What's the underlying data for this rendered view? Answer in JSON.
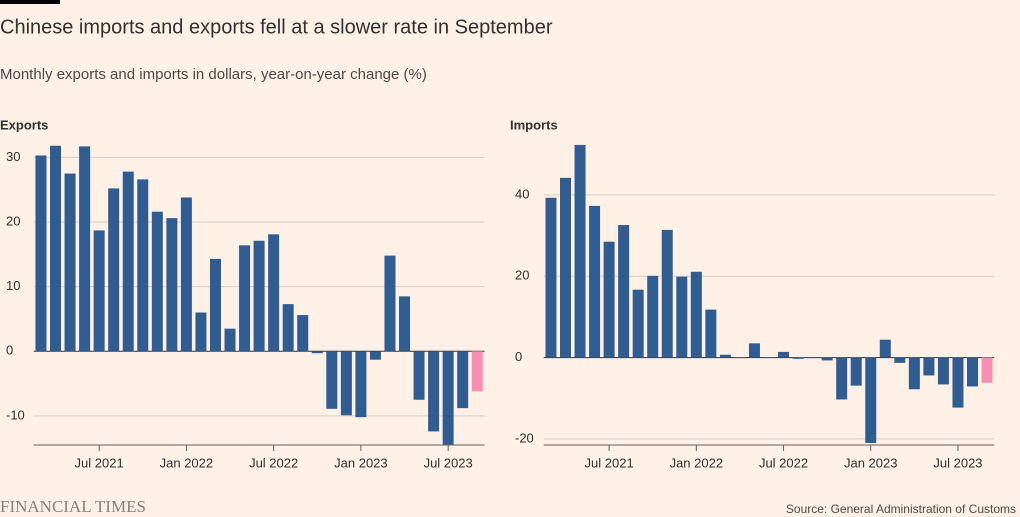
{
  "header": {
    "title": "Chinese imports and exports fell at a slower rate in September",
    "subtitle": "Monthly exports and imports in dollars, year-on-year change (%)"
  },
  "chart_data": [
    {
      "type": "bar",
      "title": "Exports",
      "categories": [
        null,
        null,
        null,
        null,
        "Jul 2021",
        null,
        null,
        null,
        null,
        null,
        "Jan 2022",
        null,
        null,
        null,
        null,
        null,
        "Jul 2022",
        null,
        null,
        null,
        null,
        null,
        "Jan 2023",
        null,
        null,
        null,
        null,
        null,
        "Jul 2023",
        null,
        null
      ],
      "values": [
        30.3,
        31.8,
        27.5,
        31.7,
        18.7,
        25.2,
        27.8,
        26.6,
        21.6,
        20.6,
        23.8,
        6.0,
        14.3,
        3.5,
        16.4,
        17.1,
        18.1,
        7.3,
        5.6,
        -0.3,
        -8.9,
        -9.9,
        -10.2,
        -1.3,
        14.8,
        8.5,
        -7.5,
        -12.4,
        -14.5,
        -8.8,
        -6.2
      ],
      "colors": [
        "#2f5d91",
        "#2f5d91",
        "#2f5d91",
        "#2f5d91",
        "#2f5d91",
        "#2f5d91",
        "#2f5d91",
        "#2f5d91",
        "#2f5d91",
        "#2f5d91",
        "#2f5d91",
        "#2f5d91",
        "#2f5d91",
        "#2f5d91",
        "#2f5d91",
        "#2f5d91",
        "#2f5d91",
        "#2f5d91",
        "#2f5d91",
        "#2f5d91",
        "#2f5d91",
        "#2f5d91",
        "#2f5d91",
        "#2f5d91",
        "#2f5d91",
        "#2f5d91",
        "#2f5d91",
        "#2f5d91",
        "#2f5d91",
        "#2f5d91",
        "#f78fb3"
      ],
      "ylim": [
        -14.5,
        33
      ],
      "yticks": [
        -10,
        0,
        10,
        20,
        30
      ],
      "grid": true
    },
    {
      "type": "bar",
      "title": "Imports",
      "categories": [
        null,
        null,
        null,
        null,
        "Jul 2021",
        null,
        null,
        null,
        null,
        null,
        "Jan 2022",
        null,
        null,
        null,
        null,
        null,
        "Jul 2022",
        null,
        null,
        null,
        null,
        null,
        "Jan 2023",
        null,
        null,
        null,
        null,
        null,
        "Jul 2023",
        null,
        null
      ],
      "values": [
        39.3,
        44.2,
        52.3,
        37.3,
        28.5,
        32.6,
        16.7,
        20.1,
        31.4,
        19.9,
        21.1,
        11.8,
        0.7,
        -0.1,
        3.5,
        0.0,
        1.4,
        -0.3,
        0.1,
        -0.7,
        -10.3,
        -6.9,
        -21.0,
        4.4,
        -1.3,
        -7.8,
        -4.4,
        -6.6,
        -12.3,
        -7.1,
        -6.2
      ],
      "colors": [
        "#2f5d91",
        "#2f5d91",
        "#2f5d91",
        "#2f5d91",
        "#2f5d91",
        "#2f5d91",
        "#2f5d91",
        "#2f5d91",
        "#2f5d91",
        "#2f5d91",
        "#2f5d91",
        "#2f5d91",
        "#2f5d91",
        "#2f5d91",
        "#2f5d91",
        "#2f5d91",
        "#2f5d91",
        "#2f5d91",
        "#2f5d91",
        "#2f5d91",
        "#2f5d91",
        "#2f5d91",
        "#2f5d91",
        "#2f5d91",
        "#2f5d91",
        "#2f5d91",
        "#2f5d91",
        "#2f5d91",
        "#2f5d91",
        "#2f5d91",
        "#f78fb3"
      ],
      "ylim": [
        -21.5,
        54
      ],
      "yticks": [
        -20,
        0,
        20,
        40
      ],
      "grid": true
    }
  ],
  "footer": {
    "brand": "FINANCIAL TIMES",
    "source": "Source: General Administration of Customs"
  }
}
